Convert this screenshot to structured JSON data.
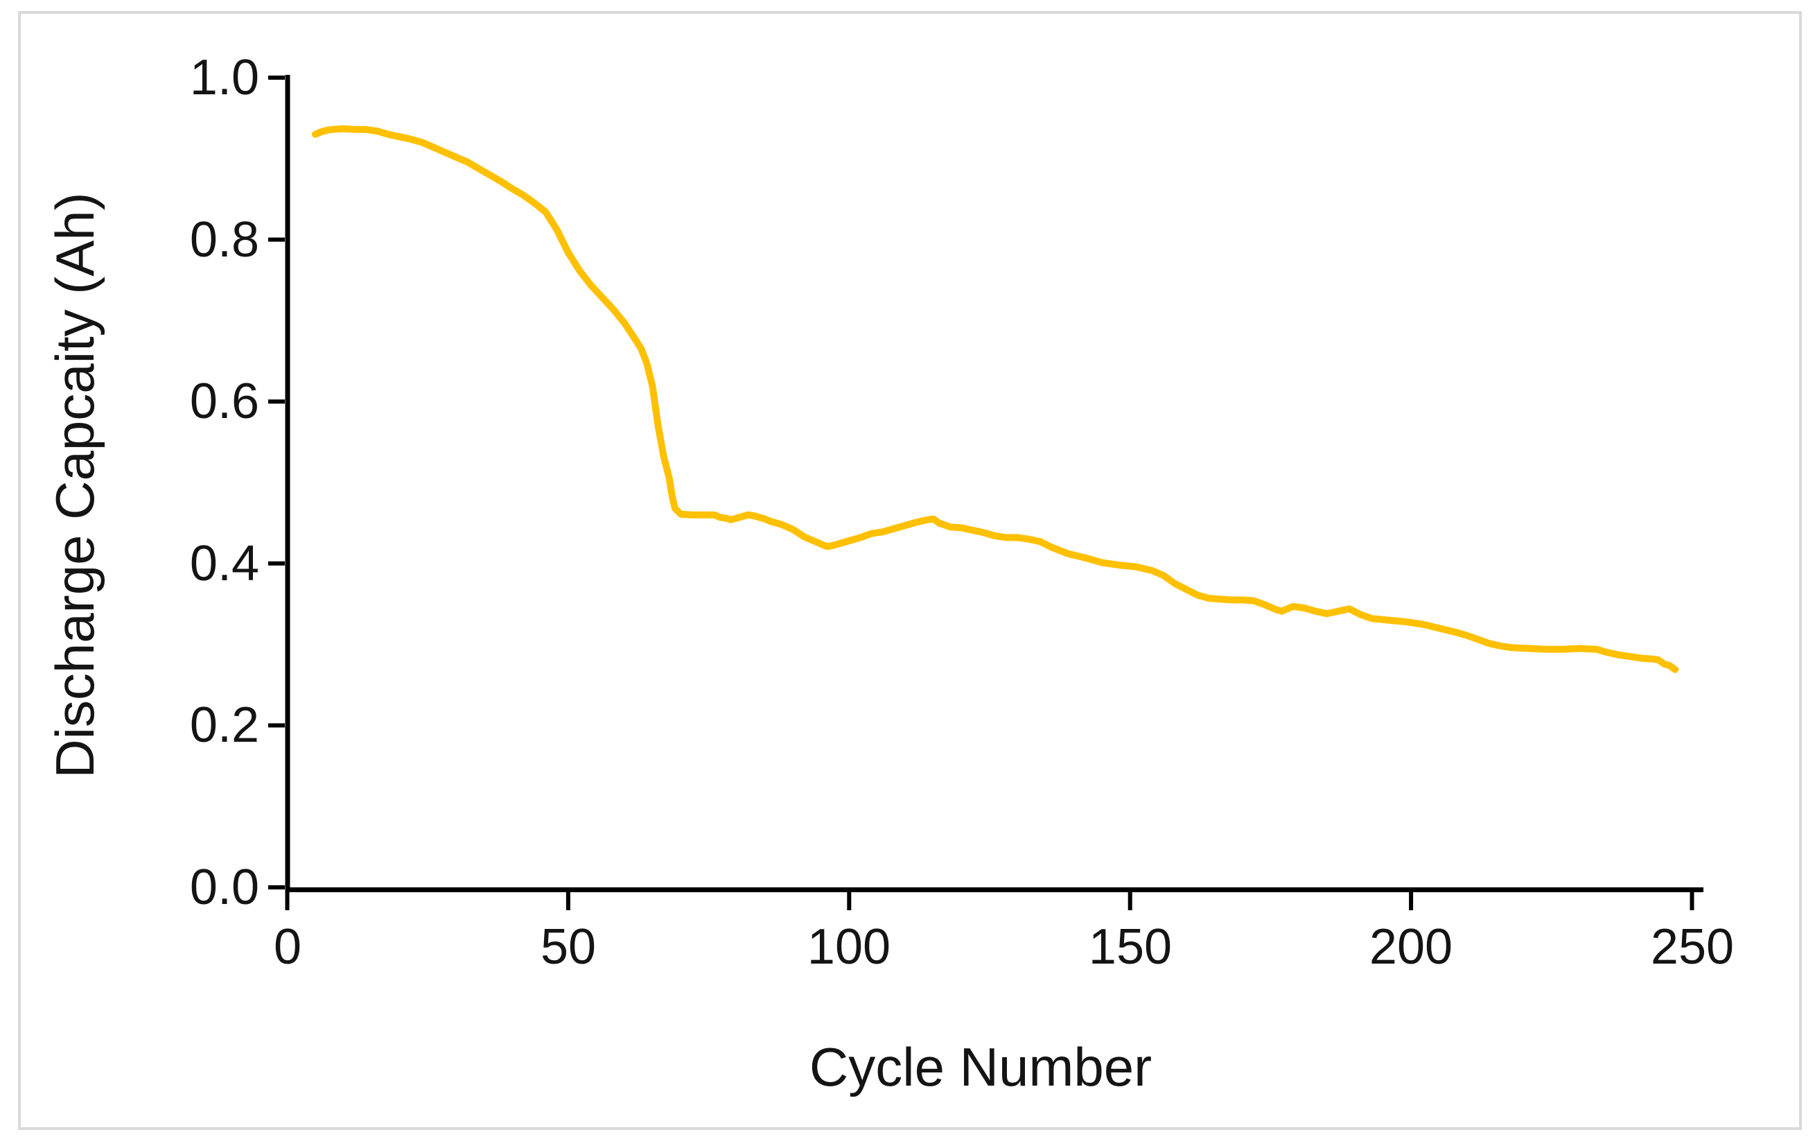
{
  "chart_data": {
    "type": "line",
    "title": "",
    "xlabel": "Cycle Number",
    "ylabel": "Discharge Capcaity (Ah)",
    "xlim": [
      0,
      250
    ],
    "ylim": [
      0.0,
      1.0
    ],
    "grid": false,
    "legend": "none",
    "x_ticks": [
      0,
      50,
      100,
      150,
      200,
      250
    ],
    "x_tick_labels": [
      "0",
      "50",
      "100",
      "150",
      "200",
      "250"
    ],
    "y_ticks": [
      0.0,
      0.2,
      0.4,
      0.6,
      0.8,
      1.0
    ],
    "y_tick_labels": [
      "0.0",
      "0.2",
      "0.4",
      "0.6",
      "0.8",
      "1.0"
    ],
    "line_color": "#FFC000",
    "axis_color": "#000000",
    "frame_border_color": "#d9d9d9",
    "series": [
      {
        "name": "Discharge Capacity",
        "points": [
          [
            5,
            0.93
          ],
          [
            6,
            0.933
          ],
          [
            7,
            0.935
          ],
          [
            8,
            0.936
          ],
          [
            10,
            0.937
          ],
          [
            12,
            0.936
          ],
          [
            14,
            0.936
          ],
          [
            16,
            0.934
          ],
          [
            18,
            0.93
          ],
          [
            20,
            0.927
          ],
          [
            22,
            0.924
          ],
          [
            24,
            0.92
          ],
          [
            26,
            0.914
          ],
          [
            28,
            0.908
          ],
          [
            30,
            0.902
          ],
          [
            32,
            0.896
          ],
          [
            34,
            0.888
          ],
          [
            36,
            0.88
          ],
          [
            38,
            0.872
          ],
          [
            40,
            0.863
          ],
          [
            42,
            0.855
          ],
          [
            44,
            0.845
          ],
          [
            46,
            0.834
          ],
          [
            48,
            0.812
          ],
          [
            50,
            0.784
          ],
          [
            52,
            0.762
          ],
          [
            54,
            0.744
          ],
          [
            56,
            0.729
          ],
          [
            58,
            0.714
          ],
          [
            60,
            0.697
          ],
          [
            62,
            0.676
          ],
          [
            63,
            0.665
          ],
          [
            64,
            0.647
          ],
          [
            65,
            0.619
          ],
          [
            66,
            0.57
          ],
          [
            67,
            0.532
          ],
          [
            68,
            0.505
          ],
          [
            68.5,
            0.483
          ],
          [
            69,
            0.468
          ],
          [
            70,
            0.461
          ],
          [
            72,
            0.46
          ],
          [
            74,
            0.46
          ],
          [
            76,
            0.46
          ],
          [
            77,
            0.457
          ],
          [
            78,
            0.456
          ],
          [
            79,
            0.454
          ],
          [
            80,
            0.456
          ],
          [
            81,
            0.458
          ],
          [
            82,
            0.46
          ],
          [
            83,
            0.459
          ],
          [
            84,
            0.457
          ],
          [
            85,
            0.455
          ],
          [
            86,
            0.452
          ],
          [
            88,
            0.448
          ],
          [
            90,
            0.442
          ],
          [
            92,
            0.433
          ],
          [
            94,
            0.427
          ],
          [
            96,
            0.421
          ],
          [
            97,
            0.422
          ],
          [
            98,
            0.424
          ],
          [
            100,
            0.428
          ],
          [
            102,
            0.432
          ],
          [
            104,
            0.437
          ],
          [
            106,
            0.439
          ],
          [
            108,
            0.443
          ],
          [
            110,
            0.447
          ],
          [
            112,
            0.451
          ],
          [
            114,
            0.454
          ],
          [
            115,
            0.455
          ],
          [
            116,
            0.45
          ],
          [
            118,
            0.445
          ],
          [
            120,
            0.444
          ],
          [
            122,
            0.441
          ],
          [
            124,
            0.438
          ],
          [
            126,
            0.434
          ],
          [
            128,
            0.432
          ],
          [
            130,
            0.432
          ],
          [
            132,
            0.43
          ],
          [
            134,
            0.427
          ],
          [
            136,
            0.42
          ],
          [
            139,
            0.412
          ],
          [
            142,
            0.407
          ],
          [
            145,
            0.401
          ],
          [
            148,
            0.398
          ],
          [
            151,
            0.396
          ],
          [
            154,
            0.391
          ],
          [
            156,
            0.385
          ],
          [
            158,
            0.375
          ],
          [
            160,
            0.368
          ],
          [
            162,
            0.361
          ],
          [
            164,
            0.357
          ],
          [
            166,
            0.356
          ],
          [
            168,
            0.355
          ],
          [
            170,
            0.355
          ],
          [
            172,
            0.354
          ],
          [
            174,
            0.349
          ],
          [
            176,
            0.343
          ],
          [
            177,
            0.341
          ],
          [
            179,
            0.347
          ],
          [
            181,
            0.345
          ],
          [
            183,
            0.341
          ],
          [
            185,
            0.338
          ],
          [
            187,
            0.341
          ],
          [
            189,
            0.344
          ],
          [
            191,
            0.337
          ],
          [
            193,
            0.332
          ],
          [
            196,
            0.33
          ],
          [
            199,
            0.328
          ],
          [
            202,
            0.325
          ],
          [
            205,
            0.32
          ],
          [
            208,
            0.315
          ],
          [
            210,
            0.311
          ],
          [
            212,
            0.306
          ],
          [
            214,
            0.301
          ],
          [
            216,
            0.298
          ],
          [
            218,
            0.296
          ],
          [
            221,
            0.295
          ],
          [
            224,
            0.294
          ],
          [
            227,
            0.294
          ],
          [
            230,
            0.295
          ],
          [
            233,
            0.294
          ],
          [
            235,
            0.29
          ],
          [
            237,
            0.287
          ],
          [
            239,
            0.285
          ],
          [
            241,
            0.283
          ],
          [
            243,
            0.282
          ],
          [
            244,
            0.281
          ],
          [
            245,
            0.276
          ],
          [
            246,
            0.274
          ],
          [
            247,
            0.269
          ]
        ]
      }
    ]
  }
}
